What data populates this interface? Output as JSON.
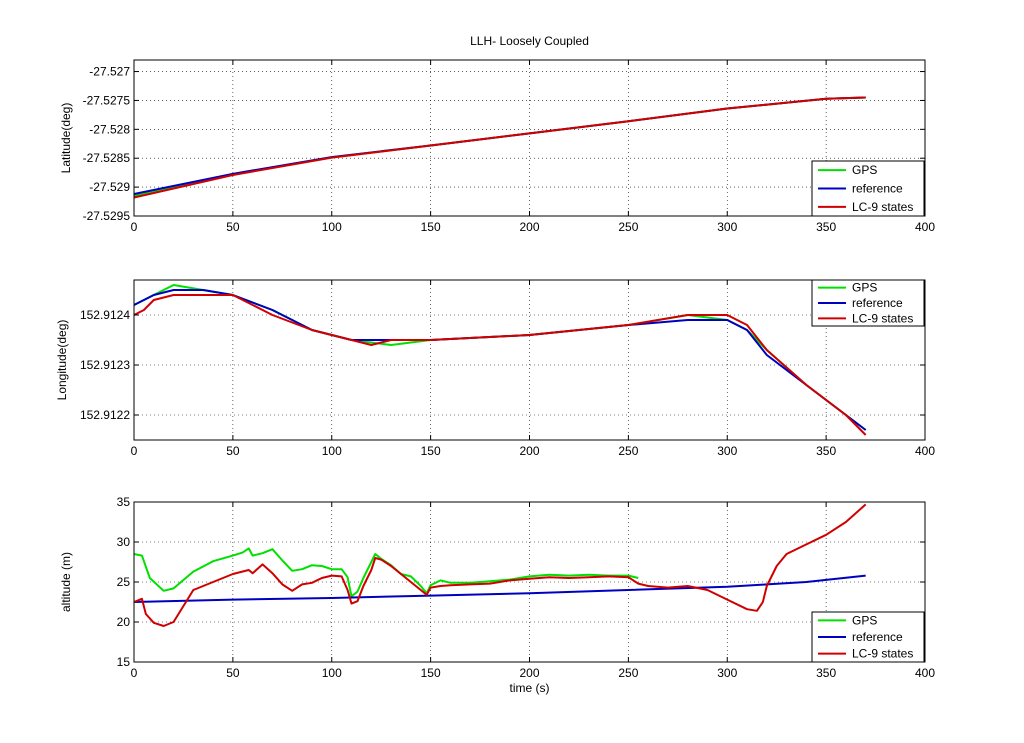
{
  "chart_data": [
    {
      "type": "line",
      "title": "LLH- Loosely Coupled",
      "xlabel": "",
      "ylabel": "Latitude(deg)",
      "xlim": [
        0,
        400
      ],
      "ylim": [
        -27.5295,
        -27.5268
      ],
      "xticks": [
        0,
        50,
        100,
        150,
        200,
        250,
        300,
        350,
        400
      ],
      "yticks": [
        -27.5295,
        -27.529,
        -27.5285,
        -27.528,
        -27.5275,
        -27.527
      ],
      "ytick_labels": [
        "-27.5295",
        "-27.529",
        "-27.5285",
        "-27.528",
        "-27.5275",
        "-27.527"
      ],
      "grid": true,
      "legend": {
        "position": "bottom-right",
        "entries": [
          "GPS",
          "reference",
          "LC-9 states"
        ]
      },
      "series": [
        {
          "name": "GPS",
          "color": "#00e000",
          "x": [
            0,
            50,
            100,
            150,
            200,
            250,
            300,
            350,
            370
          ],
          "y": [
            -27.52915,
            -27.52878,
            -27.52848,
            -27.52828,
            -27.52807,
            -27.52786,
            -27.52764,
            -27.52747,
            -27.52745
          ]
        },
        {
          "name": "reference",
          "color": "#0000c0",
          "x": [
            0,
            50,
            100,
            150,
            200,
            250,
            300,
            350,
            370
          ],
          "y": [
            -27.52912,
            -27.52877,
            -27.52848,
            -27.52828,
            -27.52807,
            -27.52786,
            -27.52764,
            -27.52747,
            -27.52745
          ]
        },
        {
          "name": "LC-9 states",
          "color": "#d00000",
          "x": [
            0,
            50,
            100,
            150,
            200,
            250,
            300,
            350,
            370
          ],
          "y": [
            -27.52918,
            -27.52879,
            -27.52849,
            -27.52828,
            -27.52807,
            -27.52786,
            -27.52764,
            -27.52747,
            -27.52745
          ]
        }
      ]
    },
    {
      "type": "line",
      "title": "",
      "xlabel": "",
      "ylabel": "Longitude(deg)",
      "xlim": [
        0,
        400
      ],
      "ylim": [
        152.91215,
        152.91247
      ],
      "xticks": [
        0,
        50,
        100,
        150,
        200,
        250,
        300,
        350,
        400
      ],
      "yticks": [
        152.9122,
        152.9123,
        152.9124
      ],
      "ytick_labels": [
        "152.9122",
        "152.9123",
        "152.9124"
      ],
      "grid": true,
      "legend": {
        "position": "top-right",
        "entries": [
          "GPS",
          "reference",
          "LC-9 states"
        ]
      },
      "series": [
        {
          "name": "GPS",
          "color": "#00e000",
          "x": [
            0,
            10,
            20,
            35,
            50,
            70,
            90,
            110,
            130,
            150,
            200,
            250,
            280,
            300,
            310,
            320,
            340,
            360,
            370
          ],
          "y": [
            152.91242,
            152.91244,
            152.91246,
            152.91245,
            152.91244,
            152.91241,
            152.91237,
            152.91235,
            152.91234,
            152.91235,
            152.91236,
            152.91238,
            152.9124,
            152.91239,
            152.91237,
            152.91233,
            152.91226,
            152.9122,
            152.91217
          ]
        },
        {
          "name": "reference",
          "color": "#0000c0",
          "x": [
            0,
            10,
            20,
            35,
            50,
            70,
            90,
            110,
            130,
            150,
            200,
            250,
            280,
            300,
            310,
            320,
            340,
            360,
            370
          ],
          "y": [
            152.91242,
            152.91244,
            152.91245,
            152.91245,
            152.91244,
            152.91241,
            152.91237,
            152.91235,
            152.91235,
            152.91235,
            152.91236,
            152.91238,
            152.91239,
            152.91239,
            152.91237,
            152.91232,
            152.91226,
            152.9122,
            152.91217
          ]
        },
        {
          "name": "LC-9 states",
          "color": "#d00000",
          "x": [
            0,
            5,
            10,
            20,
            35,
            50,
            70,
            90,
            110,
            120,
            130,
            150,
            200,
            250,
            280,
            300,
            310,
            320,
            340,
            360,
            370
          ],
          "y": [
            152.9124,
            152.91241,
            152.91243,
            152.91244,
            152.91244,
            152.91244,
            152.9124,
            152.91237,
            152.91235,
            152.91234,
            152.91235,
            152.91235,
            152.91236,
            152.91238,
            152.9124,
            152.9124,
            152.91238,
            152.91233,
            152.91226,
            152.9122,
            152.91216
          ]
        }
      ]
    },
    {
      "type": "line",
      "title": "",
      "xlabel": "time (s)",
      "ylabel": "altitude (m)",
      "xlim": [
        0,
        400
      ],
      "ylim": [
        15,
        35
      ],
      "xticks": [
        0,
        50,
        100,
        150,
        200,
        250,
        300,
        350,
        400
      ],
      "yticks": [
        15,
        20,
        25,
        30,
        35
      ],
      "ytick_labels": [
        "15",
        "20",
        "25",
        "30",
        "35"
      ],
      "grid": true,
      "legend": {
        "position": "bottom-right",
        "entries": [
          "GPS",
          "reference",
          "LC-9 states"
        ]
      },
      "series": [
        {
          "name": "GPS",
          "color": "#00e000",
          "x": [
            0,
            4,
            8,
            15,
            20,
            30,
            40,
            50,
            55,
            58,
            60,
            65,
            70,
            75,
            80,
            85,
            90,
            95,
            100,
            105,
            108,
            110,
            113,
            116,
            120,
            122,
            125,
            130,
            135,
            140,
            145,
            148,
            150,
            155,
            160,
            170,
            180,
            190,
            200,
            210,
            220,
            230,
            240,
            250,
            255
          ],
          "y": [
            28.5,
            28.3,
            25.5,
            23.9,
            24.2,
            26.3,
            27.6,
            28.3,
            28.7,
            29.2,
            28.3,
            28.6,
            29.1,
            27.7,
            26.4,
            26.6,
            27.1,
            27.0,
            26.6,
            26.6,
            25.6,
            23.2,
            23.8,
            25.5,
            27.5,
            28.5,
            27.9,
            27.1,
            26.0,
            25.7,
            24.5,
            23.6,
            24.6,
            25.2,
            24.9,
            24.9,
            25.1,
            25.3,
            25.7,
            25.9,
            25.8,
            25.9,
            25.8,
            25.8,
            25.5
          ]
        },
        {
          "name": "reference",
          "color": "#0000c0",
          "x": [
            0,
            50,
            100,
            150,
            200,
            250,
            300,
            320,
            340,
            370
          ],
          "y": [
            22.5,
            22.8,
            23.0,
            23.3,
            23.6,
            24.0,
            24.4,
            24.7,
            25.0,
            25.8
          ]
        },
        {
          "name": "LC-9 states",
          "color": "#d00000",
          "x": [
            0,
            4,
            6,
            10,
            15,
            20,
            25,
            30,
            40,
            50,
            58,
            60,
            65,
            70,
            75,
            80,
            85,
            90,
            95,
            100,
            105,
            108,
            110,
            113,
            116,
            120,
            122,
            125,
            130,
            135,
            140,
            145,
            148,
            150,
            155,
            160,
            170,
            180,
            190,
            200,
            210,
            220,
            230,
            240,
            250,
            255,
            260,
            270,
            280,
            290,
            300,
            310,
            315,
            318,
            320,
            325,
            330,
            340,
            350,
            360,
            370
          ],
          "y": [
            22.5,
            22.9,
            21.0,
            19.9,
            19.5,
            20.0,
            22.0,
            24.0,
            25.0,
            26.0,
            26.5,
            26.1,
            27.2,
            26.1,
            24.7,
            23.9,
            24.7,
            24.9,
            25.5,
            25.8,
            25.7,
            24.0,
            22.3,
            22.6,
            24.5,
            26.5,
            28.0,
            27.8,
            27.0,
            26.0,
            25.0,
            24.0,
            23.4,
            24.3,
            24.5,
            24.6,
            24.7,
            24.8,
            25.2,
            25.4,
            25.6,
            25.5,
            25.6,
            25.7,
            25.6,
            24.8,
            24.5,
            24.3,
            24.5,
            24.0,
            22.8,
            21.6,
            21.4,
            22.5,
            24.5,
            27.0,
            28.5,
            29.7,
            30.9,
            32.5,
            34.7
          ]
        }
      ]
    }
  ]
}
